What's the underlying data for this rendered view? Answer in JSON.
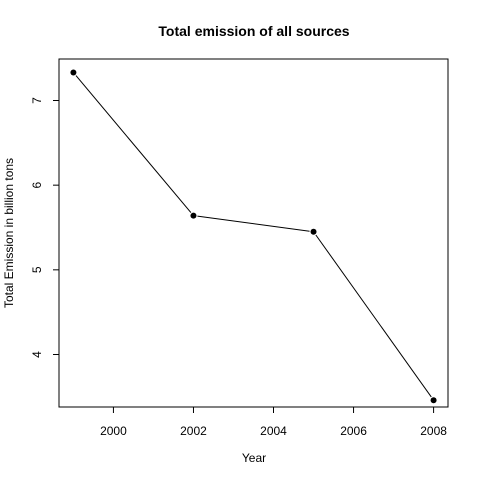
{
  "chart_data": {
    "type": "line",
    "title": "Total emission of all sources",
    "xlabel": "Year",
    "ylabel": "Total Emission in billion tons",
    "x": [
      1999,
      2002,
      2005,
      2008
    ],
    "series": [
      {
        "values": [
          7.33,
          5.64,
          5.45,
          3.46
        ]
      }
    ],
    "xlim": [
      1998.64,
      2008.36
    ],
    "ylim": [
      3.38,
      7.49
    ],
    "x_ticks": [
      "2000",
      "2002",
      "2004",
      "2006",
      "2008"
    ],
    "y_ticks": [
      "4",
      "5",
      "6",
      "7"
    ],
    "markers": true,
    "grid": false,
    "line_color": "#000000"
  }
}
